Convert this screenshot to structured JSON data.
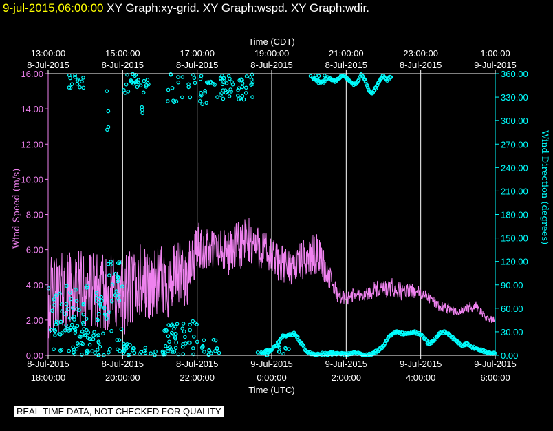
{
  "header": {
    "timestamp": "9-jul-2015,06:00:00",
    "graphs": "XY Graph:xy-grid.  XY Graph:wspd.  XY Graph:wdir."
  },
  "disclaimer": "REAL-TIME DATA, NOT CHECKED FOR QUALITY",
  "colors": {
    "wind_speed": "#ee82ee",
    "wind_direction": "#00ffff",
    "grid": "#ffffff",
    "timestamp": "#ffff00"
  },
  "chart_data": {
    "type": "line",
    "top_axis_title": "Time (CDT)",
    "bottom_axis_title": "Time (UTC)",
    "top_ticks": [
      [
        "13:00:00",
        "8-Jul-2015"
      ],
      [
        "15:00:00",
        "8-Jul-2015"
      ],
      [
        "17:00:00",
        "8-Jul-2015"
      ],
      [
        "19:00:00",
        "8-Jul-2015"
      ],
      [
        "21:00:00",
        "8-Jul-2015"
      ],
      [
        "23:00:00",
        "8-Jul-2015"
      ],
      [
        "1:00:00",
        "9-Jul-2015"
      ]
    ],
    "bottom_ticks": [
      [
        "8-Jul-2015",
        "18:00:00"
      ],
      [
        "8-Jul-2015",
        "20:00:00"
      ],
      [
        "8-Jul-2015",
        "22:00:00"
      ],
      [
        "9-Jul-2015",
        "0:00:00"
      ],
      [
        "9-Jul-2015",
        "2:00:00"
      ],
      [
        "9-Jul-2015",
        "4:00:00"
      ],
      [
        "9-Jul-2015",
        "6:00:00"
      ]
    ],
    "x_range_utc": [
      "2015-07-08 18:00:00",
      "2015-07-09 06:00:00"
    ],
    "grid": true,
    "left_axis": {
      "label": "Wind Speed (m/s)",
      "ylim": [
        0,
        16
      ],
      "ticks": [
        "0.00",
        "2.00",
        "4.00",
        "6.00",
        "8.00",
        "10.00",
        "12.00",
        "14.00",
        "16.00"
      ]
    },
    "right_axis": {
      "label": "Wind Direction (degrees)",
      "ylim": [
        0,
        360
      ],
      "ticks": [
        "0.00",
        "30.00",
        "60.00",
        "90.00",
        "120.00",
        "150.00",
        "180.00",
        "210.00",
        "240.00",
        "270.00",
        "300.00",
        "330.00",
        "360.00"
      ]
    },
    "series": [
      {
        "name": "Wind Speed",
        "axis": "left",
        "style": "line",
        "x_hours": [
          0,
          0.25,
          0.5,
          0.75,
          1,
          1.25,
          1.5,
          1.75,
          2,
          2.25,
          2.5,
          2.75,
          3,
          3.25,
          3.5,
          3.75,
          4,
          4.25,
          4.5,
          4.75,
          5,
          5.25,
          5.5,
          5.75,
          6,
          6.25,
          6.5,
          6.75,
          7,
          7.25,
          7.5,
          7.75,
          8,
          8.25,
          8.5,
          8.75,
          9,
          9.25,
          9.5,
          9.75,
          10,
          10.25,
          10.5,
          10.75,
          11,
          11.25,
          11.5,
          11.75,
          12
        ],
        "mean": [
          3.0,
          3.5,
          3.6,
          3.8,
          3.8,
          3.7,
          3.5,
          3.6,
          3.2,
          3.8,
          4.2,
          3.9,
          4.2,
          4.0,
          4.5,
          4.5,
          6.2,
          6.0,
          6.0,
          5.8,
          6.0,
          6.4,
          6.3,
          6.0,
          5.5,
          5.2,
          5.0,
          5.3,
          5.6,
          5.8,
          4.6,
          3.5,
          3.2,
          3.5,
          3.4,
          3.7,
          3.7,
          3.8,
          3.6,
          3.7,
          3.5,
          3.2,
          2.8,
          2.7,
          2.4,
          2.7,
          2.8,
          2.1,
          2.0
        ],
        "spread": [
          2.5,
          2.3,
          2.3,
          2.2,
          2.2,
          2.2,
          2.2,
          2.3,
          2.4,
          2.4,
          2.2,
          2.0,
          2.0,
          2.0,
          2.0,
          1.8,
          1.4,
          1.2,
          1.3,
          1.3,
          1.4,
          1.6,
          1.4,
          1.2,
          1.2,
          1.1,
          1.1,
          1.1,
          1.2,
          1.1,
          0.8,
          0.5,
          0.4,
          0.4,
          0.3,
          0.5,
          0.5,
          0.6,
          0.5,
          0.4,
          0.4,
          0.3,
          0.3,
          0.3,
          0.2,
          0.3,
          0.3,
          0.2,
          0.2
        ]
      },
      {
        "name": "Wind Direction",
        "axis": "right",
        "style": "scatter",
        "clusters": [
          [
            0.0,
            1.1,
            0,
            90,
            55
          ],
          [
            0.5,
            1.0,
            335,
            360,
            14
          ],
          [
            0.6,
            1.0,
            0,
            40,
            20
          ],
          [
            1.0,
            1.5,
            0,
            30,
            25
          ],
          [
            1.3,
            1.6,
            45,
            80,
            16
          ],
          [
            1.55,
            1.65,
            260,
            340,
            4
          ],
          [
            1.6,
            2.0,
            0,
            120,
            28
          ],
          [
            2.0,
            2.2,
            0,
            15,
            12
          ],
          [
            2.0,
            2.3,
            330,
            360,
            10
          ],
          [
            2.2,
            3.0,
            0,
            10,
            12
          ],
          [
            2.3,
            2.8,
            335,
            360,
            16
          ],
          [
            2.5,
            2.6,
            300,
            320,
            3
          ],
          [
            3.0,
            3.5,
            0,
            40,
            30
          ],
          [
            3.4,
            4.0,
            10,
            45,
            20
          ],
          [
            3.2,
            4.5,
            320,
            360,
            35
          ],
          [
            3.6,
            4.6,
            0,
            10,
            10
          ],
          [
            4.0,
            4.7,
            0,
            20,
            10
          ],
          [
            4.5,
            5.5,
            325,
            360,
            45
          ],
          [
            5.5,
            6.0,
            0,
            5,
            6
          ],
          [
            6.0,
            6.5,
            0,
            12,
            8
          ],
          [
            7.0,
            8.0,
            0,
            3,
            6
          ],
          [
            7.0,
            8.0,
            355,
            360,
            4
          ]
        ],
        "direction_track_x": [
          5.7,
          5.85,
          6.0,
          6.1,
          6.2,
          6.3,
          6.45,
          6.6,
          6.7,
          6.8,
          6.9,
          7.0,
          7.1,
          7.2,
          7.35,
          7.5,
          7.65,
          7.8,
          7.95,
          8.1,
          8.25,
          8.4,
          8.55,
          8.7,
          8.85,
          9.0,
          9.1,
          9.2,
          9.35,
          9.5,
          9.65,
          9.8,
          9.95,
          10.1,
          10.2,
          10.35,
          10.5,
          10.65,
          10.8,
          10.95,
          11.1,
          11.25,
          11.4,
          11.55,
          11.7,
          11.85,
          12.0
        ],
        "direction_track_y": [
          2,
          5,
          7,
          12,
          18,
          24,
          26,
          28,
          22,
          15,
          8,
          3,
          2,
          1,
          2,
          2,
          3,
          2,
          1,
          2,
          3,
          1,
          0,
          2,
          6,
          12,
          20,
          26,
          30,
          28,
          27,
          30,
          28,
          22,
          15,
          18,
          28,
          30,
          25,
          18,
          12,
          15,
          10,
          8,
          5,
          3,
          2
        ],
        "upper_track_x": [
          7.1,
          7.2,
          7.3,
          7.4,
          7.5,
          7.6,
          7.7,
          7.8,
          7.9,
          8.0,
          8.1,
          8.2,
          8.3,
          8.4,
          8.5,
          8.6,
          8.7,
          8.8,
          8.9,
          9.0,
          9.1,
          9.2
        ],
        "upper_track_y": [
          355,
          352,
          348,
          350,
          355,
          352,
          350,
          354,
          358,
          355,
          350,
          345,
          350,
          358,
          352,
          340,
          335,
          342,
          352,
          357,
          352,
          356
        ]
      }
    ]
  }
}
